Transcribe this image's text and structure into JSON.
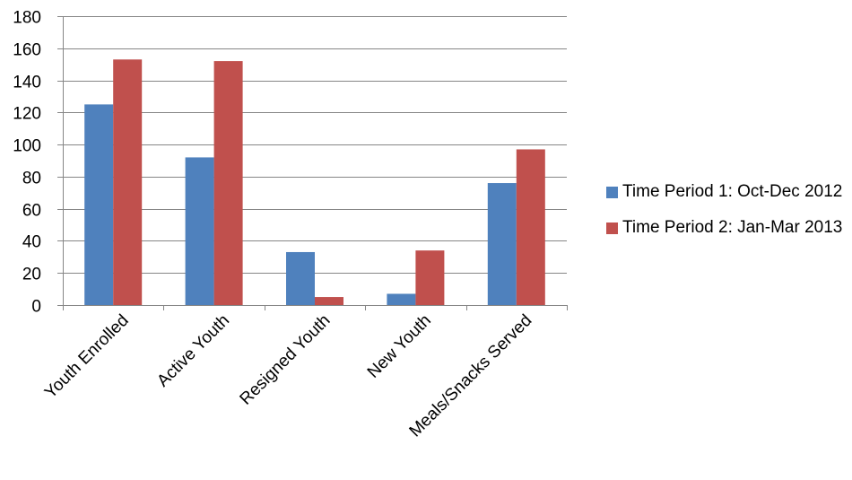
{
  "chart_data": {
    "type": "bar",
    "title": "",
    "xlabel": "",
    "ylabel": "",
    "ylim": [
      0,
      180
    ],
    "yticks": [
      0,
      20,
      40,
      60,
      80,
      100,
      120,
      140,
      160,
      180
    ],
    "grid": true,
    "legend_position": "right",
    "categories": [
      "Youth Enrolled",
      "Active Youth",
      "Resigned Youth",
      "New Youth",
      "Meals/Snacks Served"
    ],
    "series": [
      {
        "name": "Time Period 1: Oct-Dec 2012",
        "color": "#4f81bd",
        "values": [
          125,
          92,
          33,
          7,
          76
        ]
      },
      {
        "name": "Time Period 2: Jan-Mar 2013",
        "color": "#c0504d",
        "values": [
          153,
          152,
          5,
          34,
          97
        ]
      }
    ]
  }
}
